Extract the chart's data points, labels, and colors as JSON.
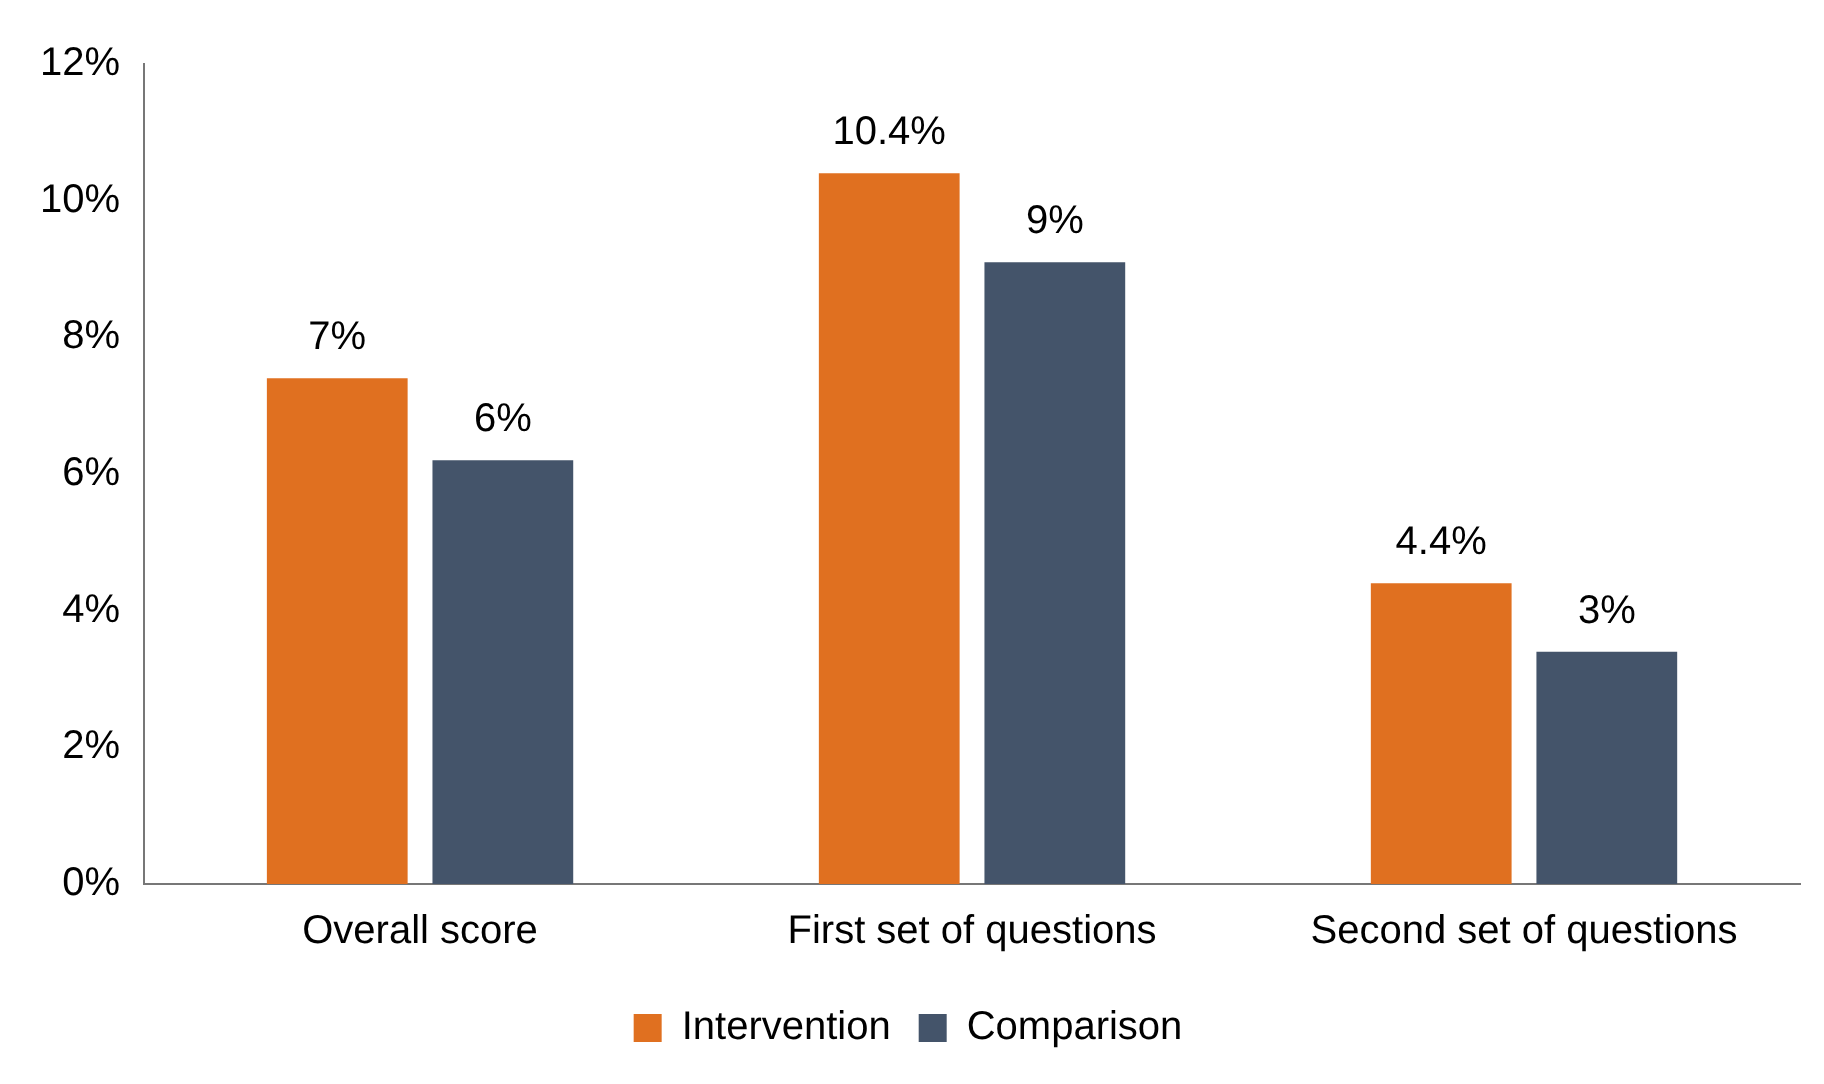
{
  "chart_data": {
    "type": "bar",
    "categories": [
      "Overall score",
      "First set of questions",
      "Second set of questions"
    ],
    "series": [
      {
        "name": "Intervention",
        "color": "#e07020",
        "values": [
          7.4,
          10.4,
          4.4
        ],
        "value_labels": [
          "7%",
          "10.4%",
          "4.4%"
        ]
      },
      {
        "name": "Comparison",
        "color": "#44546a",
        "values": [
          6.2,
          9.1,
          3.4
        ],
        "value_labels": [
          "6%",
          "9%",
          "3%"
        ]
      }
    ],
    "ylim": [
      0,
      12
    ],
    "yticks": [
      {
        "value": 0,
        "label": "0%"
      },
      {
        "value": 2,
        "label": "2%"
      },
      {
        "value": 4,
        "label": "4%"
      },
      {
        "value": 6,
        "label": "6%"
      },
      {
        "value": 8,
        "label": "8%"
      },
      {
        "value": 10,
        "label": "10%"
      },
      {
        "value": 12,
        "label": "12%"
      }
    ],
    "grid": false,
    "legend": "bottom"
  }
}
